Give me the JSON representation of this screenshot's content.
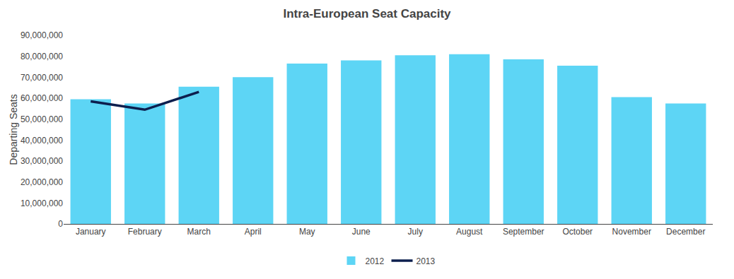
{
  "chart_data": {
    "type": "bar",
    "title": "Intra-European Seat Capacity",
    "ylabel": "Departing Seats",
    "categories": [
      "January",
      "February",
      "March",
      "April",
      "May",
      "June",
      "July",
      "August",
      "September",
      "October",
      "November",
      "December"
    ],
    "series": [
      {
        "name": "2012",
        "type": "bar",
        "color": "#5DD5F5",
        "values": [
          59500000,
          57500000,
          65500000,
          70000000,
          76500000,
          78000000,
          80500000,
          81000000,
          78500000,
          75500000,
          60500000,
          57500000
        ]
      },
      {
        "name": "2013",
        "type": "line",
        "color": "#0D1F4E",
        "values": [
          58500000,
          54500000,
          63000000,
          null,
          null,
          null,
          null,
          null,
          null,
          null,
          null,
          null
        ]
      }
    ],
    "ylim": [
      0,
      90000000
    ],
    "yticks": [
      0,
      {
        "value": 10000000,
        "label": "10,000,000"
      },
      {
        "value": 20000000,
        "label": "20,000,000"
      },
      {
        "value": 30000000,
        "label": "30,000,000"
      },
      {
        "value": 40000000,
        "label": "40,000,000"
      },
      {
        "value": 50000000,
        "label": "50,000,000"
      },
      {
        "value": 60000000,
        "label": "60,000,000"
      },
      {
        "value": 70000000,
        "label": "70,000,000"
      },
      {
        "value": 80000000,
        "label": "80,000,000"
      },
      {
        "value": 90000000,
        "label": "90,000,000"
      }
    ],
    "grid": false,
    "legend": "bottom"
  }
}
